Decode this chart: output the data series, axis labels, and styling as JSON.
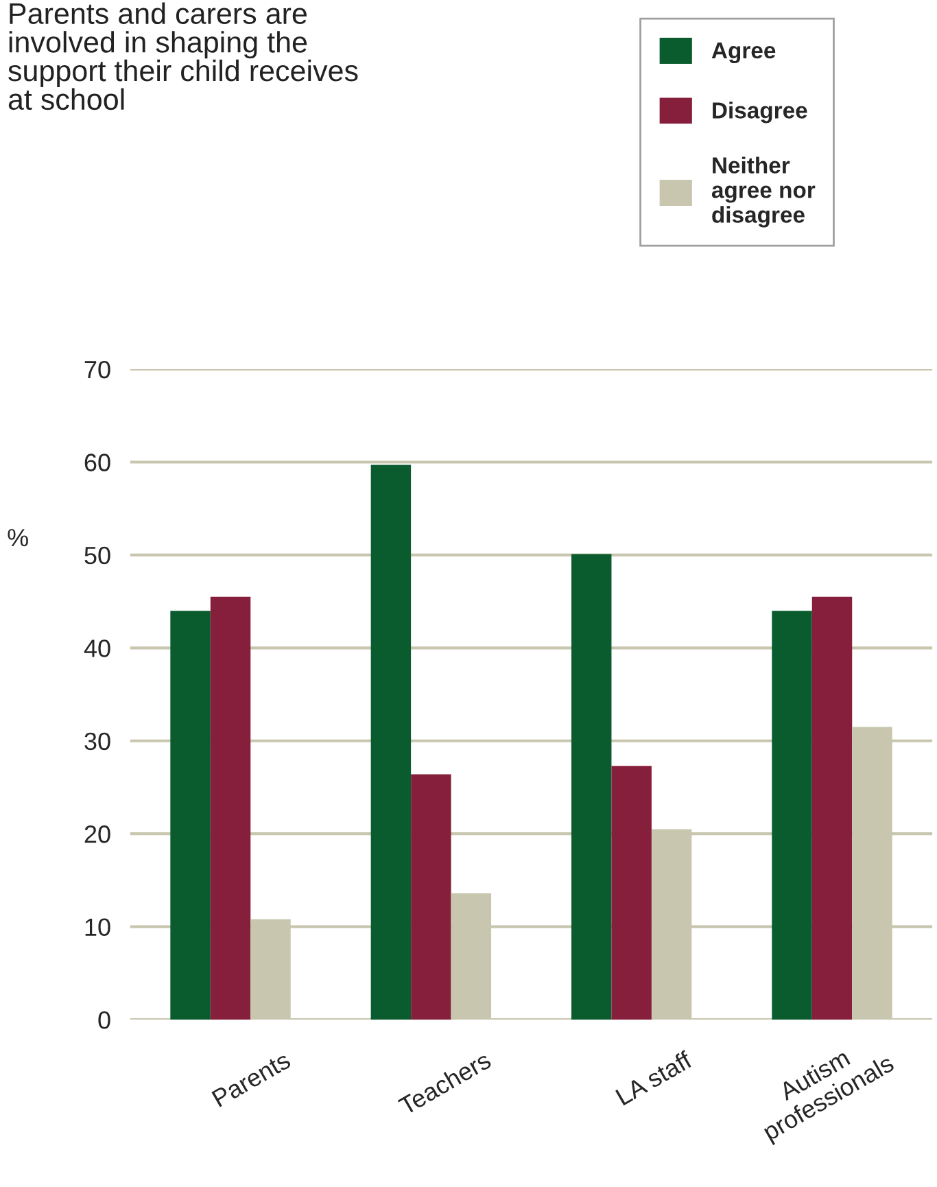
{
  "chart_data": {
    "type": "bar",
    "title": "Parents and carers are\ninvolved in shaping the\nsupport their child receives\nat school",
    "ylabel": "%",
    "categories": [
      "Parents",
      "Teachers",
      "LA staff",
      "Autism\nprofessionals"
    ],
    "series": [
      {
        "name": "Agree",
        "color": "#0a5c2e",
        "values": [
          44,
          59.7,
          50.1,
          44
        ]
      },
      {
        "name": "Disagree",
        "color": "#861f3c",
        "values": [
          45.5,
          26.4,
          27.3,
          45.5
        ]
      },
      {
        "name": "Neither\nagree nor\ndisagree",
        "color": "#c8c6ae",
        "values": [
          10.8,
          13.6,
          20.5,
          31.5
        ]
      }
    ],
    "ylim": [
      0,
      70
    ],
    "yticks": [
      0,
      10,
      20,
      30,
      40,
      50,
      60,
      70
    ],
    "grid": "y",
    "legend": "top right"
  }
}
